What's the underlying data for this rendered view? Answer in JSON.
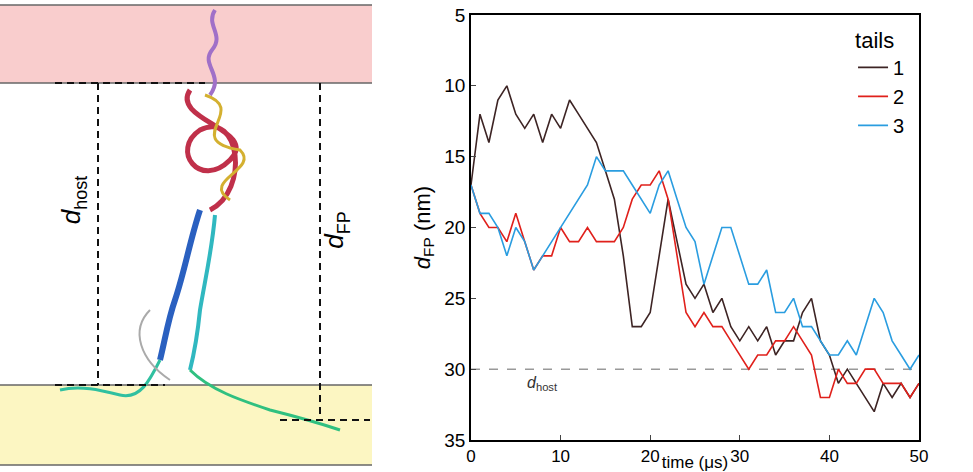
{
  "diagram": {
    "labels": [
      {
        "symbol": "d",
        "subscript": "host"
      },
      {
        "symbol": "d",
        "subscript": "FP"
      }
    ]
  },
  "chart_data": {
    "type": "line",
    "x_label": "time (μs)",
    "y_label": {
      "symbol": "d",
      "subscript": "FP",
      "text": "(nm)"
    },
    "x": [
      0,
      1,
      2,
      3,
      4,
      5,
      6,
      7,
      8,
      9,
      10,
      11,
      12,
      13,
      14,
      15,
      16,
      17,
      18,
      19,
      20,
      21,
      22,
      23,
      24,
      25,
      26,
      27,
      28,
      29,
      30,
      31,
      32,
      33,
      34,
      35,
      36,
      37,
      38,
      39,
      40,
      41,
      42,
      43,
      44,
      45,
      46,
      47,
      48,
      49,
      50
    ],
    "series": [
      {
        "name": "1",
        "color": "#3d2424",
        "values": [
          17,
          12,
          14,
          11,
          10,
          12,
          13,
          12,
          14,
          12,
          13,
          11,
          12,
          13,
          14,
          16,
          18,
          22,
          27,
          27,
          26,
          22,
          18,
          21,
          24,
          25,
          24,
          26,
          25,
          27,
          28,
          27,
          28,
          27,
          29,
          28,
          28,
          26,
          25,
          28,
          29,
          31,
          30,
          31,
          32,
          33,
          31,
          32,
          31,
          32,
          31
        ]
      },
      {
        "name": "2",
        "color": "#e0201b",
        "values": [
          17,
          19,
          20,
          20,
          21,
          19,
          21,
          23,
          22,
          22,
          20,
          21,
          21,
          20,
          21,
          21,
          21,
          20,
          18,
          17,
          17,
          16,
          18,
          22,
          26,
          27,
          26,
          27,
          27,
          28,
          29,
          30,
          29,
          29,
          28,
          28,
          27,
          28,
          29,
          32,
          32,
          30,
          31,
          31,
          30,
          30,
          31,
          31,
          31,
          32,
          31
        ]
      },
      {
        "name": "3",
        "color": "#2a9de0",
        "values": [
          17,
          19,
          19,
          20,
          22,
          20,
          21,
          23,
          22,
          21,
          20,
          19,
          18,
          17,
          15,
          16,
          16,
          16,
          17,
          18,
          19,
          17,
          16,
          18,
          20,
          21,
          24,
          22,
          20,
          20,
          22,
          24,
          24,
          23,
          26,
          26,
          25,
          27,
          27,
          28,
          29,
          29,
          28,
          29,
          27,
          25,
          26,
          28,
          29,
          30,
          29
        ]
      }
    ],
    "legend_title": "tails",
    "legend": "top-right",
    "xlim": [
      0,
      50
    ],
    "xticks": [
      0,
      10,
      20,
      30,
      40,
      50
    ],
    "ylim": [
      35,
      5
    ],
    "yticks": [
      5,
      10,
      15,
      20,
      25,
      30,
      35
    ],
    "grid": false,
    "reference_line": {
      "y": 30,
      "label": {
        "symbol": "d",
        "subscript": "host"
      },
      "color": "#999999",
      "line_style": "dashed"
    }
  }
}
